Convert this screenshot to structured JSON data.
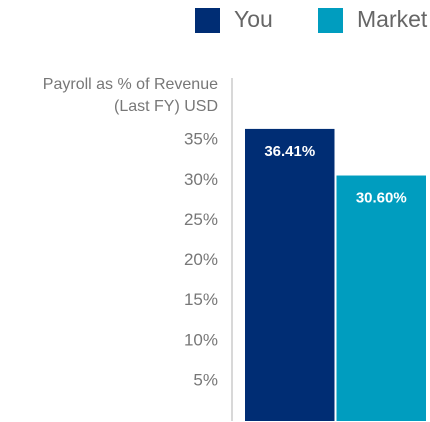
{
  "chart_data": {
    "type": "bar",
    "ylabel": [
      "Payroll as % of Revenue",
      "(Last FY) USD"
    ],
    "categories": [
      null
    ],
    "series": [
      {
        "name": "You",
        "color": "#002d74",
        "values": [
          36.41
        ],
        "value_labels": [
          "36.41%"
        ]
      },
      {
        "name": "Market",
        "color": "#009dbf",
        "values": [
          30.6
        ],
        "value_labels": [
          "30.60%"
        ]
      }
    ],
    "ylim": [
      0,
      45
    ],
    "yticks": [
      {
        "value": 5,
        "label": "5%"
      },
      {
        "value": 10,
        "label": "10%"
      },
      {
        "value": 15,
        "label": "15%"
      },
      {
        "value": 20,
        "label": "20%"
      },
      {
        "value": 25,
        "label": "25%"
      },
      {
        "value": 30,
        "label": "30%"
      },
      {
        "value": 35,
        "label": "35%"
      }
    ],
    "grid": false,
    "legend": "top"
  }
}
